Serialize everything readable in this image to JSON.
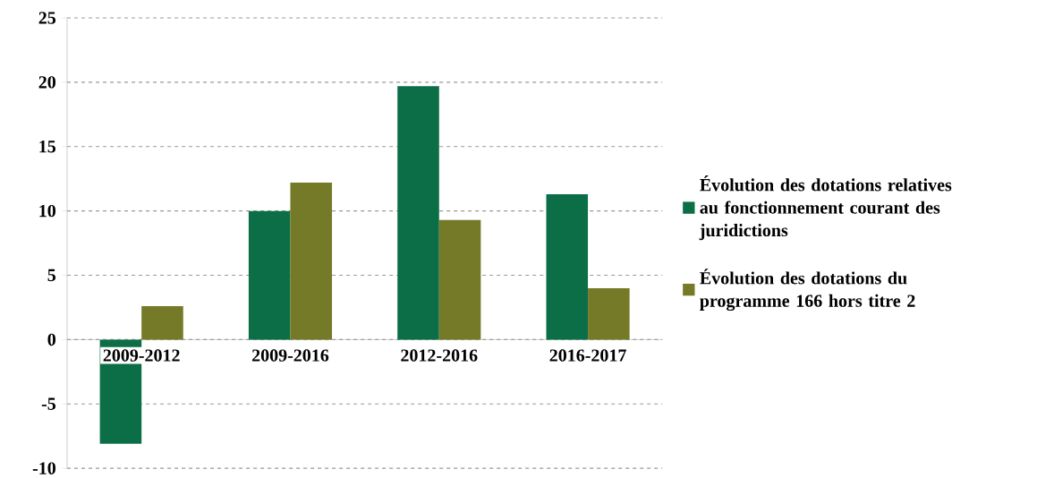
{
  "chart_data": {
    "type": "bar",
    "categories": [
      "2009-2012",
      "2009-2016",
      "2012-2016",
      "2016-2017"
    ],
    "series": [
      {
        "name": "Évolution des dotations relatives au fonctionnement courant des juridictions",
        "color": "#0b6e46",
        "values": [
          -8.1,
          10.0,
          19.7,
          11.3
        ]
      },
      {
        "name": "Évolution des dotations du programme 166 hors titre 2",
        "color": "#747a28",
        "values": [
          2.6,
          12.2,
          9.3,
          4.0
        ]
      }
    ],
    "ylim": [
      -10,
      25
    ],
    "yticks": [
      -10,
      -5,
      0,
      5,
      10,
      15,
      20,
      25
    ],
    "grid": "y",
    "legend": "right"
  }
}
